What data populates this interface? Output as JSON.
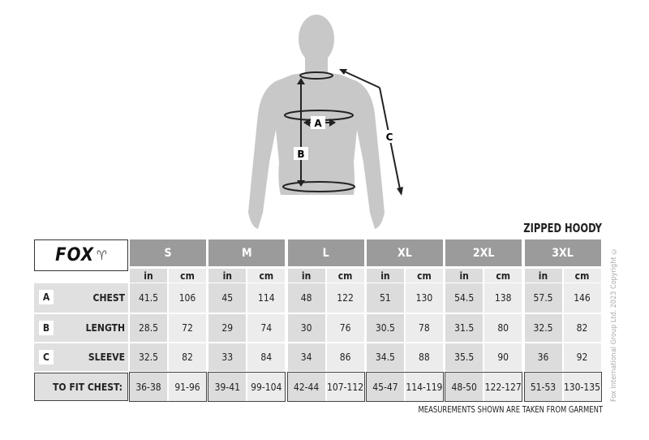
{
  "title": "ZIPPED HOODY",
  "brand": "FOX",
  "diagram_labels": {
    "a": "A",
    "b": "B",
    "c": "C"
  },
  "units": {
    "in": "in",
    "cm": "cm"
  },
  "sizes": [
    {
      "label": "S",
      "chest": [
        "41.5",
        "106"
      ],
      "length": [
        "28.5",
        "72"
      ],
      "sleeve": [
        "32.5",
        "82"
      ],
      "fit": [
        "36-38",
        "91-96"
      ]
    },
    {
      "label": "M",
      "chest": [
        "45",
        "114"
      ],
      "length": [
        "29",
        "74"
      ],
      "sleeve": [
        "33",
        "84"
      ],
      "fit": [
        "39-41",
        "99-104"
      ]
    },
    {
      "label": "L",
      "chest": [
        "48",
        "122"
      ],
      "length": [
        "30",
        "76"
      ],
      "sleeve": [
        "34",
        "86"
      ],
      "fit": [
        "42-44",
        "107-112"
      ]
    },
    {
      "label": "XL",
      "chest": [
        "51",
        "130"
      ],
      "length": [
        "30.5",
        "78"
      ],
      "sleeve": [
        "34.5",
        "88"
      ],
      "fit": [
        "45-47",
        "114-119"
      ]
    },
    {
      "label": "2XL",
      "chest": [
        "54.5",
        "138"
      ],
      "length": [
        "31.5",
        "80"
      ],
      "sleeve": [
        "35.5",
        "90"
      ],
      "fit": [
        "48-50",
        "122-127"
      ]
    },
    {
      "label": "3XL",
      "chest": [
        "57.5",
        "146"
      ],
      "length": [
        "32.5",
        "82"
      ],
      "sleeve": [
        "36",
        "92"
      ],
      "fit": [
        "51-53",
        "130-135"
      ]
    }
  ],
  "rows": [
    {
      "key": "chest",
      "letter": "A",
      "label": "CHEST"
    },
    {
      "key": "length",
      "letter": "B",
      "label": "LENGTH"
    },
    {
      "key": "sleeve",
      "letter": "C",
      "label": "SLEEVE"
    }
  ],
  "fit_label": "TO FIT CHEST:",
  "note": "MEASUREMENTS SHOWN ARE TAKEN FROM GARMENT",
  "copyright": "Fox International Group Ltd. 2023 Copyright ©",
  "colors": {
    "header": "#9b9b9b",
    "in_col": "#dcdcdc",
    "cm_col": "#ececec",
    "silhouette": "#c8c8c8"
  }
}
